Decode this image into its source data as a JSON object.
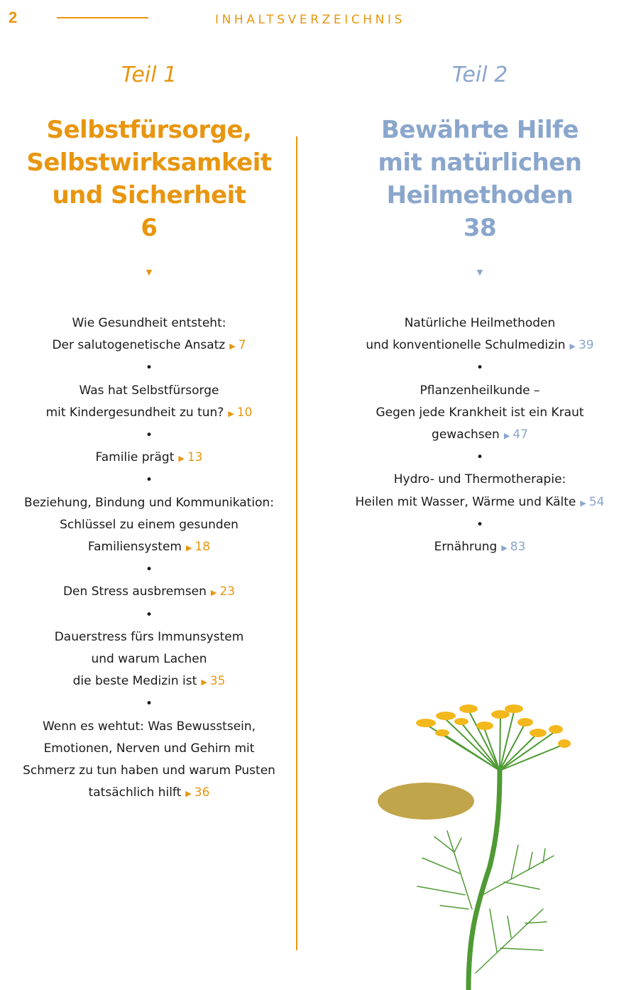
{
  "header": {
    "page_number": "2",
    "title": "INHALTSVERZEICHNIS"
  },
  "colors": {
    "orange": "#e8960f",
    "blue": "#8aa6cc"
  },
  "parts": [
    {
      "label": "Teil 1",
      "title_lines": [
        "Selbstfürsorge,",
        "Selbstwirksamkeit",
        "und Sicherheit"
      ],
      "page": "6",
      "arrow": "▼",
      "entries": [
        {
          "lines": [
            "Wie Gesundheit entsteht:",
            "Der salutogenetische Ansatz"
          ],
          "page": "7"
        },
        {
          "lines": [
            "Was hat Selbstfürsorge",
            "mit Kindergesundheit zu tun?"
          ],
          "page": "10"
        },
        {
          "lines": [
            "Familie prägt"
          ],
          "page": "13"
        },
        {
          "lines": [
            "Beziehung, Bindung und Kommunikation:",
            "Schlüssel zu einem gesunden",
            "Familiensystem"
          ],
          "page": "18"
        },
        {
          "lines": [
            "Den Stress ausbremsen"
          ],
          "page": "23"
        },
        {
          "lines": [
            "Dauerstress fürs Immunsystem",
            "und warum Lachen",
            "die beste Medizin ist"
          ],
          "page": "35"
        },
        {
          "lines": [
            "Wenn es wehtut: Was Bewusstsein,",
            "Emotionen, Nerven und Gehirn mit",
            "Schmerz zu tun haben und warum Pusten",
            "tatsächlich hilft"
          ],
          "page": "36"
        }
      ]
    },
    {
      "label": "Teil 2",
      "title_lines": [
        "Bewährte Hilfe",
        "mit natürlichen",
        "Heilmethoden"
      ],
      "page": "38",
      "arrow": "▼",
      "entries": [
        {
          "lines": [
            "Natürliche Heilmethoden",
            "und konventionelle Schulmedizin"
          ],
          "page": "39"
        },
        {
          "lines": [
            "Pflanzenheilkunde –",
            "Gegen jede Krankheit ist ein Kraut",
            "gewachsen"
          ],
          "page": "47"
        },
        {
          "lines": [
            "Hydro- und Thermotherapie:",
            "Heilen mit Wasser, Wärme und Kälte"
          ],
          "page": "54"
        },
        {
          "lines": [
            "Ernährung"
          ],
          "page": "83"
        }
      ]
    }
  ],
  "separator": "•",
  "page_marker": "▶",
  "illustration": "fennel-plant"
}
